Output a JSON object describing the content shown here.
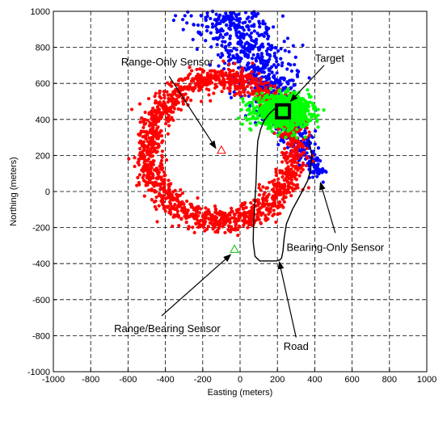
{
  "chart_data": {
    "type": "scatter",
    "xlabel": "Easting (meters)",
    "ylabel": "Northing (meters)",
    "xlim": [
      -1000,
      1000
    ],
    "ylim": [
      -1000,
      1000
    ],
    "xticks": [
      -1000,
      -800,
      -600,
      -400,
      -200,
      0,
      200,
      400,
      600,
      800,
      1000
    ],
    "yticks": [
      -1000,
      -800,
      -600,
      -400,
      -200,
      0,
      200,
      400,
      600,
      800,
      1000
    ],
    "grid": true,
    "colors": {
      "range": "#ff0000",
      "bearing": "#0000ff",
      "combined": "#00ff00",
      "road": "#000000",
      "target": "#000000"
    },
    "series": [
      {
        "name": "Bearing-Only Sensor",
        "kind": "point-cloud",
        "color": "#0000ff",
        "count": 900,
        "segment": {
          "from": [
            420,
            90
          ],
          "to": [
            -80,
            1000
          ]
        },
        "spread": 70
      },
      {
        "name": "Range-Only Sensor",
        "kind": "ring-cloud",
        "color": "#ff0000",
        "count": 1700,
        "center": [
          -100,
          230
        ],
        "radius": 395,
        "spread": 36
      },
      {
        "name": "Range/Bearing Sensor",
        "kind": "point-cloud",
        "color": "#00ff00",
        "count": 1100,
        "center": [
          230,
          445
        ],
        "sx": 72,
        "sy": 42
      }
    ],
    "road": {
      "x": [
        370,
        385,
        378,
        362,
        322,
        280,
        248,
        236,
        230,
        222,
        212,
        195,
        170,
        140,
        105,
        80,
        70,
        72,
        76,
        80,
        85,
        88,
        90,
        95,
        110,
        130,
        155,
        180,
        200,
        210
      ],
      "y": [
        280,
        200,
        120,
        60,
        -20,
        -100,
        -180,
        -260,
        -330,
        -370,
        -380,
        -385,
        -385,
        -385,
        -385,
        -360,
        -280,
        -200,
        -120,
        -40,
        40,
        120,
        200,
        280,
        345,
        395,
        430,
        455,
        470,
        480
      ]
    },
    "markers": [
      {
        "label": "range-only-sensor-marker",
        "x": -100,
        "y": 230,
        "shape": "triangle",
        "color": "#ff0000"
      },
      {
        "label": "range-bearing-sensor-marker",
        "x": -30,
        "y": -320,
        "shape": "triangle",
        "color": "#00c000"
      },
      {
        "label": "target-marker",
        "x": 230,
        "y": 445,
        "shape": "square",
        "color": "#000000"
      }
    ],
    "annotations": [
      {
        "text": "Range-Only Sensor",
        "text_at": [
          -390,
          700
        ],
        "anchor": "middle",
        "arrow_from": [
          -380,
          640
        ],
        "arrow_to": [
          -130,
          240
        ]
      },
      {
        "text": "Target",
        "text_at": [
          480,
          720
        ],
        "anchor": "middle",
        "arrow_from": [
          450,
          700
        ],
        "arrow_to": [
          270,
          500
        ]
      },
      {
        "text": "Bearing-Only Sensor",
        "text_at": [
          510,
          -330
        ],
        "anchor": "middle",
        "arrow_from": [
          510,
          -230
        ],
        "arrow_to": [
          430,
          50
        ]
      },
      {
        "text": "Range/Bearing Sensor",
        "text_at": [
          -390,
          -780
        ],
        "anchor": "middle",
        "arrow_from": [
          -420,
          -690
        ],
        "arrow_to": [
          -50,
          -350
        ]
      },
      {
        "text": "Road",
        "text_at": [
          300,
          -880
        ],
        "anchor": "middle",
        "arrow_from": [
          300,
          -810
        ],
        "arrow_to": [
          210,
          -390
        ]
      }
    ]
  }
}
